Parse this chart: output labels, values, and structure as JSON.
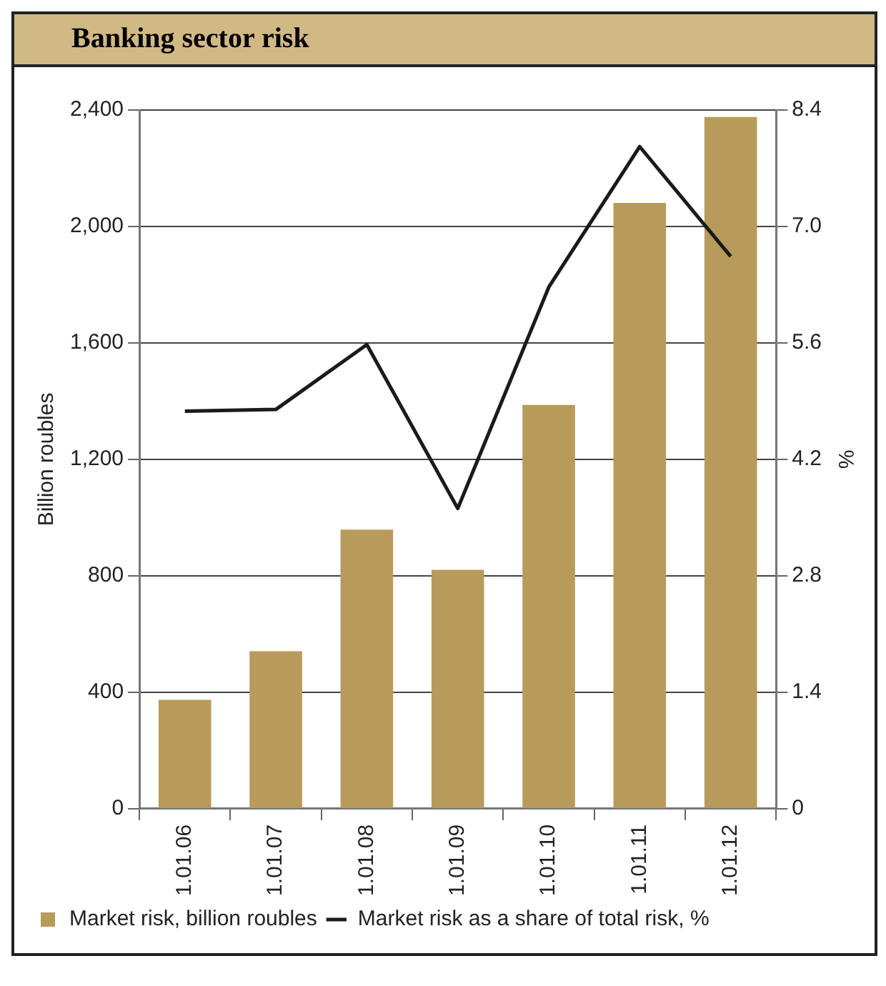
{
  "chart_data": {
    "type": "bar",
    "title": "Banking sector risk",
    "categories": [
      "1.01.06",
      "1.01.07",
      "1.01.08",
      "1.01.09",
      "1.01.10",
      "1.01.11",
      "1.01.12"
    ],
    "series": [
      {
        "name": "Market risk, billion roubles",
        "color": "#b89a5a",
        "values": [
          374,
          541,
          959,
          821,
          1387,
          2081,
          2376
        ]
      },
      {
        "name": "Market risk as a share of total risk, %",
        "type": "line",
        "axis": "y2",
        "color": "#1a1a1a",
        "values": [
          4.78,
          4.8,
          5.58,
          3.61,
          6.27,
          7.96,
          6.64
        ]
      }
    ],
    "ylabel": "Billion roubles",
    "y2label": "%",
    "ylim": [
      0,
      2400
    ],
    "yticks": [
      0,
      400,
      800,
      {
        "value": 1200,
        "label": "1,200"
      },
      {
        "value": 1600,
        "label": "1,600"
      },
      {
        "value": 2000,
        "label": "2,000"
      },
      {
        "value": 2400,
        "label": "2,400"
      }
    ],
    "y2lim": [
      0,
      8.4
    ],
    "y2ticks": [
      0,
      1.4,
      2.8,
      4.2,
      5.6,
      {
        "value": 7,
        "label": "7.0"
      },
      8.4
    ],
    "grid": "y",
    "legend": "bottom left",
    "marker": "none",
    "line_style": "solid"
  }
}
